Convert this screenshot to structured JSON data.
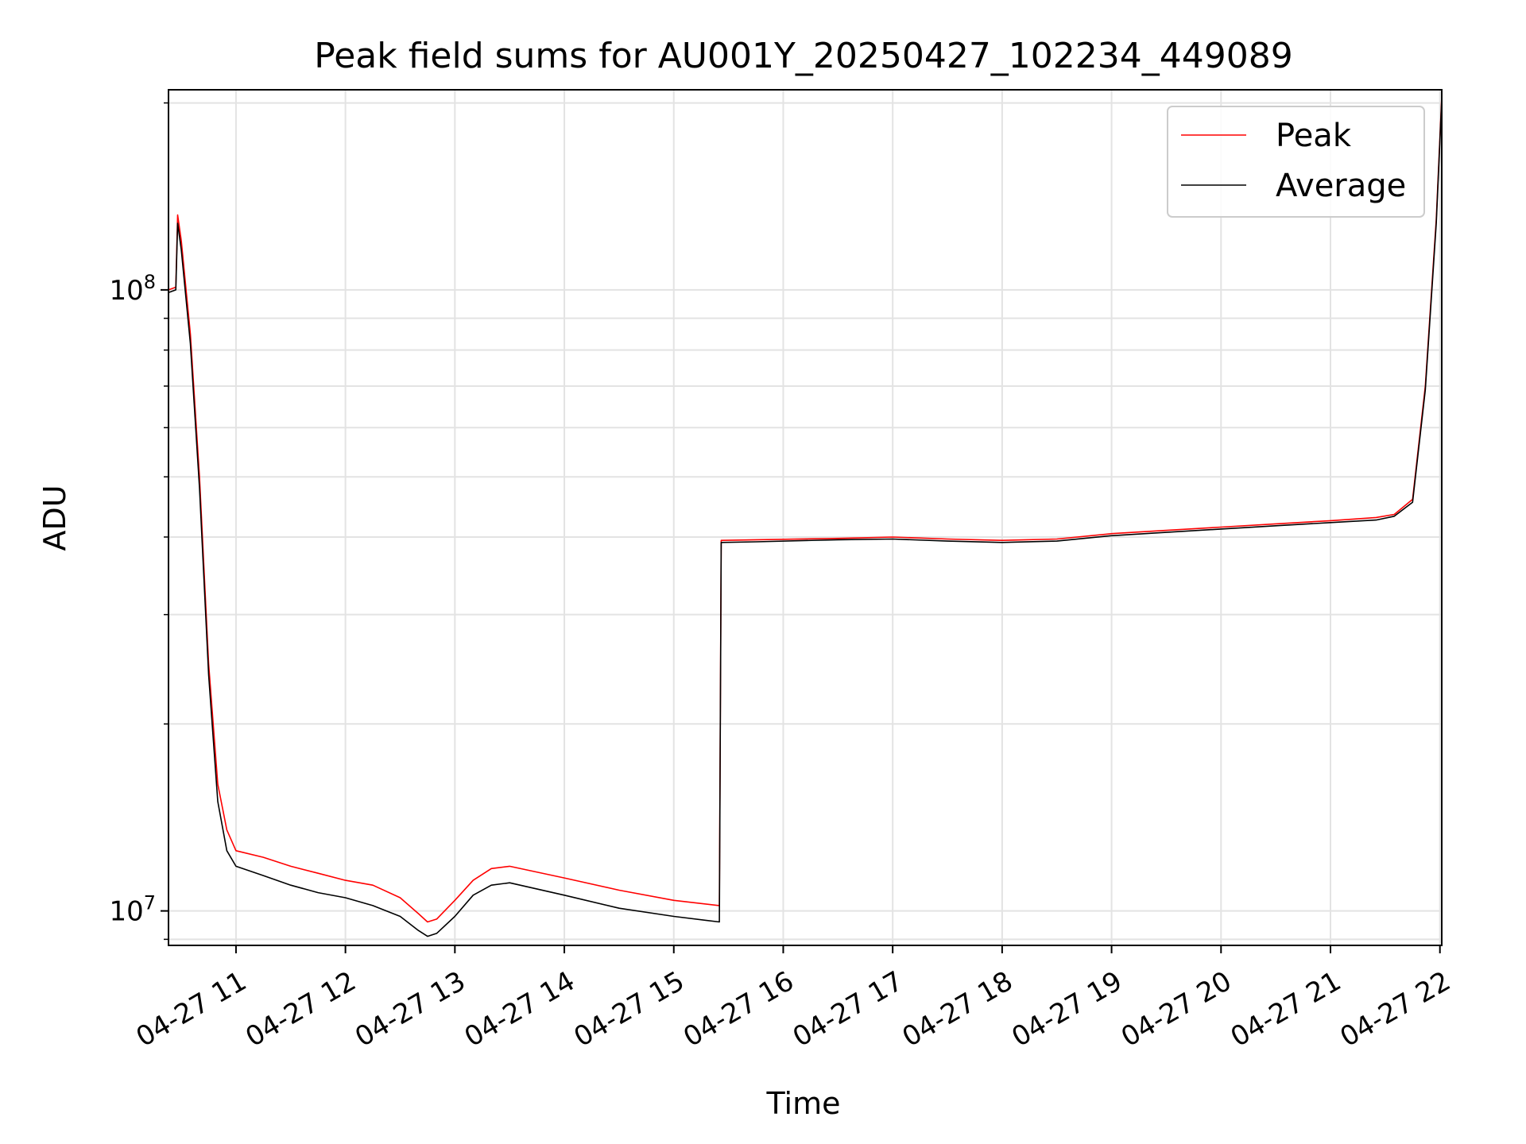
{
  "chart_data": {
    "type": "line",
    "title": "Peak field sums for AU001Y_20250427_102234_449089",
    "xlabel": "Time",
    "ylabel": "ADU",
    "y_scale": "log",
    "ylim": [
      8800000,
      210000000
    ],
    "xlim": [
      "2025-04-27 10:23",
      "2025-04-27 22:01"
    ],
    "grid": true,
    "legend_position": "top-right",
    "x_tick_labels": [
      "04-27 11",
      "04-27 12",
      "04-27 13",
      "04-27 14",
      "04-27 15",
      "04-27 16",
      "04-27 17",
      "04-27 18",
      "04-27 19",
      "04-27 20",
      "04-27 21",
      "04-27 22"
    ],
    "x_tick_values": [
      "2025-04-27 11:00",
      "2025-04-27 12:00",
      "2025-04-27 13:00",
      "2025-04-27 14:00",
      "2025-04-27 15:00",
      "2025-04-27 16:00",
      "2025-04-27 17:00",
      "2025-04-27 18:00",
      "2025-04-27 19:00",
      "2025-04-27 20:00",
      "2025-04-27 21:00",
      "2025-04-27 22:00"
    ],
    "y_major_ticks": [
      {
        "value": 10000000,
        "base": "10",
        "exp": "7"
      },
      {
        "value": 100000000,
        "base": "10",
        "exp": "8"
      }
    ],
    "series": [
      {
        "name": "Peak",
        "color": "#ff0000",
        "x": [
          "2025-04-27 10:23",
          "2025-04-27 10:27",
          "2025-04-27 10:28",
          "2025-04-27 10:30",
          "2025-04-27 10:35",
          "2025-04-27 10:40",
          "2025-04-27 10:45",
          "2025-04-27 10:50",
          "2025-04-27 10:55",
          "2025-04-27 11:00",
          "2025-04-27 11:15",
          "2025-04-27 11:30",
          "2025-04-27 11:45",
          "2025-04-27 12:00",
          "2025-04-27 12:15",
          "2025-04-27 12:30",
          "2025-04-27 12:40",
          "2025-04-27 12:45",
          "2025-04-27 12:50",
          "2025-04-27 13:00",
          "2025-04-27 13:10",
          "2025-04-27 13:20",
          "2025-04-27 13:30",
          "2025-04-27 14:00",
          "2025-04-27 14:30",
          "2025-04-27 15:00",
          "2025-04-27 15:25",
          "2025-04-27 15:26",
          "2025-04-27 15:45",
          "2025-04-27 16:30",
          "2025-04-27 17:00",
          "2025-04-27 17:30",
          "2025-04-27 18:00",
          "2025-04-27 18:30",
          "2025-04-27 19:00",
          "2025-04-27 19:30",
          "2025-04-27 20:00",
          "2025-04-27 20:30",
          "2025-04-27 21:00",
          "2025-04-27 21:25",
          "2025-04-27 21:35",
          "2025-04-27 21:45",
          "2025-04-27 21:52",
          "2025-04-27 21:58",
          "2025-04-27 22:01"
        ],
        "values": [
          100000000,
          101000000,
          132000000,
          120000000,
          85000000,
          50000000,
          25000000,
          16000000,
          13500000,
          12500000,
          12200000,
          11800000,
          11500000,
          11200000,
          11000000,
          10500000,
          9900000,
          9600000,
          9700000,
          10400000,
          11200000,
          11700000,
          11800000,
          11300000,
          10800000,
          10400000,
          10200000,
          39500000,
          39600000,
          39800000,
          40000000,
          39700000,
          39500000,
          39700000,
          40500000,
          41000000,
          41500000,
          42000000,
          42500000,
          43000000,
          43500000,
          46000000,
          70000000,
          130000000,
          205000000
        ]
      },
      {
        "name": "Average",
        "color": "#000000",
        "x": [
          "2025-04-27 10:23",
          "2025-04-27 10:27",
          "2025-04-27 10:28",
          "2025-04-27 10:30",
          "2025-04-27 10:35",
          "2025-04-27 10:40",
          "2025-04-27 10:45",
          "2025-04-27 10:50",
          "2025-04-27 10:55",
          "2025-04-27 11:00",
          "2025-04-27 11:15",
          "2025-04-27 11:30",
          "2025-04-27 11:45",
          "2025-04-27 12:00",
          "2025-04-27 12:15",
          "2025-04-27 12:30",
          "2025-04-27 12:40",
          "2025-04-27 12:45",
          "2025-04-27 12:50",
          "2025-04-27 13:00",
          "2025-04-27 13:10",
          "2025-04-27 13:20",
          "2025-04-27 13:30",
          "2025-04-27 14:00",
          "2025-04-27 14:30",
          "2025-04-27 15:00",
          "2025-04-27 15:25",
          "2025-04-27 15:26",
          "2025-04-27 15:45",
          "2025-04-27 16:30",
          "2025-04-27 17:00",
          "2025-04-27 17:30",
          "2025-04-27 18:00",
          "2025-04-27 18:30",
          "2025-04-27 19:00",
          "2025-04-27 19:30",
          "2025-04-27 20:00",
          "2025-04-27 20:30",
          "2025-04-27 21:00",
          "2025-04-27 21:25",
          "2025-04-27 21:35",
          "2025-04-27 21:45",
          "2025-04-27 21:52",
          "2025-04-27 21:58",
          "2025-04-27 22:01"
        ],
        "values": [
          99000000,
          100000000,
          128000000,
          116000000,
          82000000,
          48000000,
          24000000,
          15000000,
          12500000,
          11800000,
          11400000,
          11000000,
          10700000,
          10500000,
          10200000,
          9800000,
          9300000,
          9100000,
          9200000,
          9800000,
          10600000,
          11000000,
          11100000,
          10600000,
          10100000,
          9800000,
          9600000,
          39200000,
          39300000,
          39600000,
          39700000,
          39400000,
          39200000,
          39400000,
          40200000,
          40700000,
          41200000,
          41700000,
          42200000,
          42600000,
          43200000,
          45500000,
          69000000,
          128000000,
          203000000
        ]
      }
    ]
  }
}
